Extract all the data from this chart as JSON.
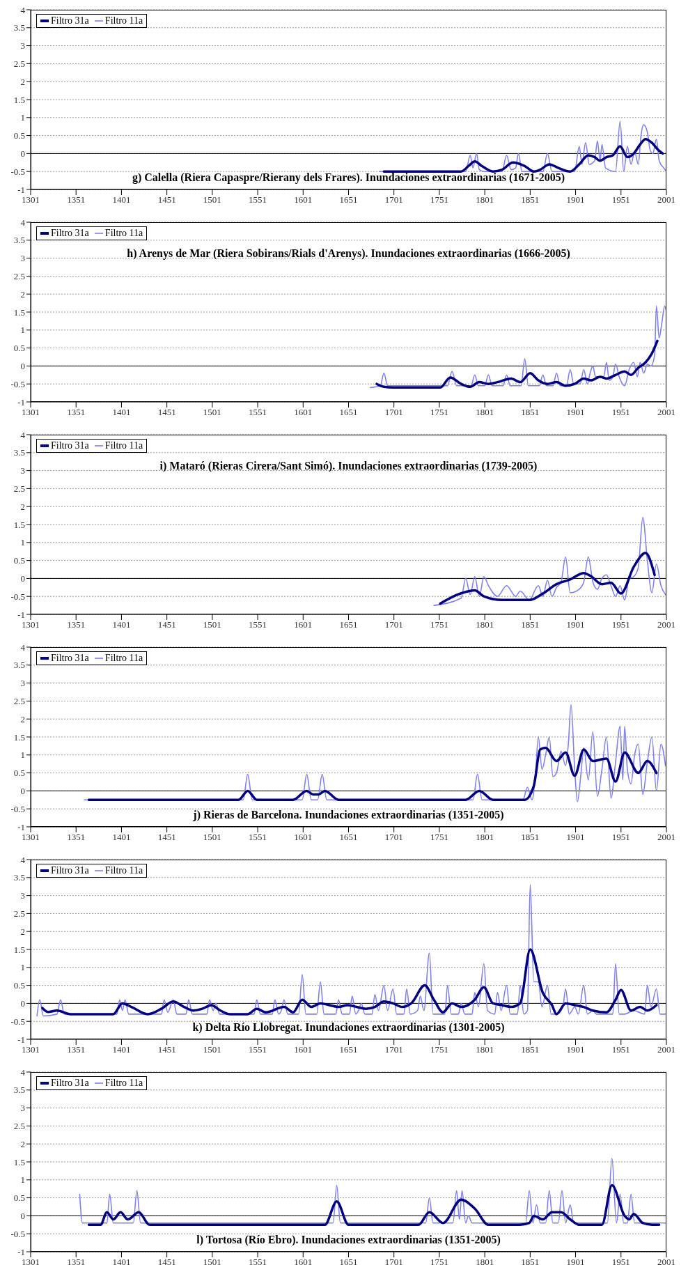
{
  "chart_data": [
    {
      "type": "line",
      "title": "g) Calella (Riera Capaspre/Rierany dels Frares). Inundaciones extraordinarias (1671-2005)",
      "xlim": [
        1301,
        2001
      ],
      "xticks": [
        1301,
        1351,
        1401,
        1451,
        1501,
        1551,
        1601,
        1651,
        1701,
        1751,
        1801,
        1851,
        1901,
        1951,
        2001
      ],
      "ylim": [
        -1,
        4
      ],
      "yticks": [
        -1,
        -0.5,
        0,
        0.5,
        1,
        1.5,
        2,
        2.5,
        3,
        3.5,
        4
      ],
      "grid": "y",
      "legend": "top left",
      "ref_lines": [
        {
          "axis": "y",
          "value": 0
        }
      ],
      "series": [
        {
          "name": "Filtro 31a",
          "color": "#000080",
          "x": [
            1690,
            1700,
            1720,
            1740,
            1760,
            1775,
            1783,
            1790,
            1798,
            1810,
            1820,
            1832,
            1845,
            1855,
            1862,
            1872,
            1882,
            1895,
            1905,
            1915,
            1922,
            1928,
            1935,
            1942,
            1950,
            1958,
            1965,
            1972,
            1978,
            1985,
            1992,
            1997
          ],
          "values": [
            -0.5,
            -0.5,
            -0.5,
            -0.5,
            -0.5,
            -0.5,
            -0.35,
            -0.22,
            -0.35,
            -0.5,
            -0.45,
            -0.25,
            -0.35,
            -0.5,
            -0.45,
            -0.3,
            -0.4,
            -0.5,
            -0.3,
            -0.05,
            -0.1,
            -0.2,
            -0.1,
            -0.05,
            0.2,
            -0.1,
            0.0,
            0.25,
            0.4,
            0.3,
            0.1,
            0.0
          ]
        },
        {
          "name": "Filtro 11a",
          "color": "#8080ee",
          "x": [
            1685,
            1780,
            1785,
            1788,
            1792,
            1795,
            1800,
            1820,
            1825,
            1830,
            1835,
            1838,
            1842,
            1865,
            1870,
            1875,
            1900,
            1905,
            1908,
            1912,
            1916,
            1922,
            1925,
            1928,
            1930,
            1934,
            1945,
            1950,
            1954,
            1958,
            1962,
            1966,
            1970,
            1973,
            1976,
            1980,
            1983,
            1986,
            1990,
            1993,
            1998,
            2001
          ],
          "values": [
            -0.5,
            -0.5,
            -0.05,
            -0.4,
            0.0,
            -0.45,
            -0.5,
            -0.5,
            -0.05,
            -0.45,
            -0.4,
            0.0,
            -0.5,
            -0.5,
            0.0,
            -0.5,
            -0.5,
            0.2,
            -0.3,
            0.3,
            -0.3,
            -0.2,
            0.35,
            -0.2,
            0.25,
            -0.4,
            -0.5,
            0.9,
            -0.5,
            0.2,
            -0.3,
            0.05,
            -0.3,
            0.5,
            0.8,
            0.6,
            0.1,
            0.0,
            0.4,
            -0.2,
            -0.4,
            -0.5
          ]
        }
      ]
    },
    {
      "type": "line",
      "title": "h) Arenys de Mar (Riera Sobirans/Rials d'Arenys). Inundaciones extraordinarias (1666-2005)",
      "xlim": [
        1301,
        2001
      ],
      "xticks": [
        1301,
        1351,
        1401,
        1451,
        1501,
        1551,
        1601,
        1651,
        1701,
        1751,
        1801,
        1851,
        1901,
        1951,
        2001
      ],
      "ylim": [
        -1,
        4
      ],
      "yticks": [
        -1,
        -0.5,
        0,
        0.5,
        1,
        1.5,
        2,
        2.5,
        3,
        3.5,
        4
      ],
      "grid": "y",
      "legend": "top left",
      "ref_lines": [
        {
          "axis": "y",
          "value": 0
        }
      ],
      "series": [
        {
          "name": "Filtro 31a",
          "color": "#000080",
          "x": [
            1682,
            1690,
            1700,
            1720,
            1752,
            1763,
            1775,
            1785,
            1795,
            1805,
            1815,
            1830,
            1840,
            1851,
            1860,
            1870,
            1880,
            1890,
            1900,
            1910,
            1918,
            1928,
            1935,
            1945,
            1955,
            1962,
            1970,
            1978,
            1985,
            1991
          ],
          "values": [
            -0.5,
            -0.58,
            -0.6,
            -0.6,
            -0.6,
            -0.32,
            -0.5,
            -0.58,
            -0.45,
            -0.5,
            -0.45,
            -0.35,
            -0.45,
            -0.2,
            -0.4,
            -0.5,
            -0.45,
            -0.55,
            -0.5,
            -0.35,
            -0.4,
            -0.3,
            -0.35,
            -0.25,
            -0.15,
            -0.25,
            -0.05,
            0.1,
            0.35,
            0.7
          ]
        },
        {
          "name": "Filtro 11a",
          "color": "#8080ee",
          "x": [
            1675,
            1686,
            1690,
            1694,
            1760,
            1765,
            1770,
            1786,
            1790,
            1794,
            1801,
            1805,
            1809,
            1821,
            1825,
            1829,
            1841,
            1845,
            1849,
            1861,
            1865,
            1869,
            1876,
            1880,
            1884,
            1891,
            1895,
            1899,
            1906,
            1910,
            1914,
            1917,
            1920,
            1923,
            1932,
            1935,
            1938,
            1942,
            1945,
            1949,
            1955,
            1960,
            1965,
            1969,
            1972,
            1976,
            1980,
            1984,
            1988,
            1990,
            1993,
            1996,
            1999,
            2001
          ],
          "values": [
            -0.6,
            -0.55,
            -0.2,
            -0.55,
            -0.55,
            -0.15,
            -0.55,
            -0.55,
            -0.25,
            -0.55,
            -0.55,
            -0.25,
            -0.55,
            -0.55,
            -0.25,
            -0.55,
            -0.55,
            0.2,
            -0.55,
            -0.55,
            -0.25,
            -0.55,
            -0.55,
            -0.2,
            -0.55,
            -0.55,
            -0.1,
            -0.5,
            -0.5,
            -0.1,
            -0.5,
            -0.2,
            0.0,
            -0.3,
            -0.3,
            0.1,
            -0.4,
            -0.3,
            0.05,
            -0.3,
            -0.55,
            -0.1,
            0.1,
            -0.3,
            0.1,
            -0.2,
            0.05,
            0.0,
            0.3,
            1.67,
            0.78,
            1.2,
            1.67,
            1.5
          ]
        }
      ]
    },
    {
      "type": "line",
      "title": "i) Mataró (Rieras Cirera/Sant Simó). Inundaciones extraordinarias (1739-2005)",
      "xlim": [
        1301,
        2001
      ],
      "xticks": [
        1301,
        1351,
        1401,
        1451,
        1501,
        1551,
        1601,
        1651,
        1701,
        1751,
        1801,
        1851,
        1901,
        1951,
        2001
      ],
      "ylim": [
        -1,
        4
      ],
      "yticks": [
        -1,
        -0.5,
        0,
        0.5,
        1,
        1.5,
        2,
        2.5,
        3,
        3.5,
        4
      ],
      "grid": "y",
      "legend": "top left",
      "ref_lines": [
        {
          "axis": "y",
          "value": 0
        }
      ],
      "series": [
        {
          "name": "Filtro 31a",
          "color": "#000080",
          "x": [
            1752,
            1770,
            1790,
            1800,
            1820,
            1835,
            1850,
            1865,
            1880,
            1895,
            1910,
            1918,
            1930,
            1940,
            1951,
            1965,
            1978,
            1988
          ],
          "values": [
            -0.7,
            -0.46,
            -0.33,
            -0.5,
            -0.6,
            -0.6,
            -0.6,
            -0.42,
            -0.16,
            -0.03,
            0.15,
            0.06,
            -0.16,
            -0.12,
            -0.42,
            0.32,
            0.71,
            0.1
          ]
        },
        {
          "name": "Filtro 11a",
          "color": "#8080ee",
          "x": [
            1745,
            1775,
            1780,
            1785,
            1790,
            1795,
            1800,
            1805,
            1815,
            1825,
            1835,
            1840,
            1850,
            1860,
            1865,
            1870,
            1875,
            1880,
            1885,
            1890,
            1895,
            1905,
            1910,
            1915,
            1920,
            1925,
            1930,
            1935,
            1940,
            1945,
            1950,
            1955,
            1960,
            1965,
            1970,
            1975,
            1980,
            1985,
            1990,
            1995,
            2000
          ],
          "values": [
            -0.75,
            -0.55,
            0.0,
            -0.45,
            0.05,
            -0.5,
            0.05,
            -0.2,
            -0.5,
            -0.2,
            -0.5,
            -0.35,
            -0.6,
            -0.2,
            -0.5,
            -0.05,
            -0.5,
            -0.25,
            -0.1,
            0.6,
            -0.4,
            -0.3,
            -0.1,
            0.6,
            -0.1,
            -0.3,
            0.0,
            0.1,
            -0.2,
            -0.5,
            -0.2,
            -0.6,
            0.0,
            0.05,
            0.3,
            1.7,
            0.5,
            -0.4,
            0.4,
            -0.2,
            -0.45
          ]
        }
      ]
    },
    {
      "type": "line",
      "title": "j) Rieras de Barcelona. Inundaciones extraordinarias (1351-2005)",
      "xlim": [
        1301,
        2001
      ],
      "xticks": [
        1301,
        1351,
        1401,
        1451,
        1501,
        1551,
        1601,
        1651,
        1701,
        1751,
        1801,
        1851,
        1901,
        1951,
        2001
      ],
      "ylim": [
        -1,
        4
      ],
      "yticks": [
        -1,
        -0.5,
        0,
        0.5,
        1,
        1.5,
        2,
        2.5,
        3,
        3.5,
        4
      ],
      "grid": "y",
      "legend": "top left",
      "ref_lines": [
        {
          "axis": "y",
          "value": 0
        }
      ],
      "series": [
        {
          "name": "Filtro 31a",
          "color": "#000080",
          "x": [
            1365,
            1400,
            1450,
            1500,
            1530,
            1540,
            1550,
            1590,
            1605,
            1612,
            1618,
            1625,
            1640,
            1700,
            1780,
            1795,
            1810,
            1845,
            1855,
            1862,
            1868,
            1880,
            1890,
            1900,
            1910,
            1920,
            1935,
            1945,
            1955,
            1970,
            1980,
            1990
          ],
          "values": [
            -0.25,
            -0.25,
            -0.25,
            -0.25,
            -0.25,
            0.0,
            -0.25,
            -0.25,
            0.0,
            -0.1,
            -0.1,
            0.0,
            -0.25,
            -0.25,
            -0.25,
            0.0,
            -0.25,
            -0.25,
            0.14,
            1.15,
            1.2,
            0.83,
            1.07,
            0.42,
            1.15,
            0.83,
            0.9,
            0.26,
            1.07,
            0.5,
            0.83,
            0.5
          ]
        },
        {
          "name": "Filtro 11a",
          "color": "#8080ee",
          "x": [
            1360,
            1535,
            1540,
            1545,
            1600,
            1605,
            1610,
            1617,
            1622,
            1627,
            1788,
            1793,
            1798,
            1843,
            1848,
            1853,
            1857,
            1860,
            1864,
            1868,
            1872,
            1876,
            1880,
            1885,
            1890,
            1893,
            1896,
            1900,
            1903,
            1907,
            1910,
            1915,
            1920,
            1925,
            1930,
            1935,
            1940,
            1945,
            1950,
            1953,
            1955,
            1958,
            1962,
            1966,
            1970,
            1975,
            1980,
            1985,
            1990,
            1995,
            2000
          ],
          "values": [
            -0.25,
            -0.25,
            0.46,
            -0.25,
            -0.25,
            0.46,
            -0.25,
            -0.25,
            0.46,
            -0.25,
            -0.25,
            0.46,
            -0.25,
            -0.25,
            0.1,
            -0.25,
            0.5,
            1.5,
            0.6,
            1.0,
            1.5,
            0.4,
            0.5,
            1.1,
            0.7,
            1.3,
            2.4,
            0.6,
            -0.3,
            0.5,
            1.2,
            0.3,
            1.65,
            -0.15,
            0.6,
            1.5,
            -0.2,
            0.8,
            1.8,
            0.3,
            1.8,
            0.6,
            0.2,
            1.0,
            1.3,
            -0.1,
            0.8,
            1.5,
            0.0,
            1.3,
            0.7
          ]
        }
      ]
    },
    {
      "type": "line",
      "title": "k) Delta Río Llobregat. Inundaciones extraordinarias (1301-2005)",
      "xlim": [
        1301,
        2001
      ],
      "xticks": [
        1301,
        1351,
        1401,
        1451,
        1501,
        1551,
        1601,
        1651,
        1701,
        1751,
        1801,
        1851,
        1901,
        1951,
        2001
      ],
      "ylim": [
        -1,
        4
      ],
      "yticks": [
        -1,
        -0.5,
        0,
        0.5,
        1,
        1.5,
        2,
        2.5,
        3,
        3.5,
        4
      ],
      "grid": "y",
      "legend": "top left",
      "ref_lines": [
        {
          "axis": "y",
          "value": 0
        }
      ],
      "series": [
        {
          "name": "Filtro 31a",
          "color": "#000080",
          "x": [
            1314,
            1320,
            1330,
            1345,
            1392,
            1402,
            1412,
            1430,
            1445,
            1458,
            1470,
            1480,
            1490,
            1500,
            1510,
            1520,
            1540,
            1550,
            1560,
            1580,
            1590,
            1600,
            1610,
            1620,
            1630,
            1640,
            1650,
            1660,
            1670,
            1680,
            1690,
            1700,
            1710,
            1720,
            1735,
            1745,
            1755,
            1765,
            1775,
            1790,
            1800,
            1810,
            1820,
            1830,
            1840,
            1851,
            1865,
            1875,
            1880,
            1890,
            1900,
            1910,
            1920,
            1935,
            1945,
            1951,
            1962,
            1972,
            1980,
            1990
          ],
          "values": [
            -0.13,
            -0.24,
            -0.2,
            -0.3,
            -0.3,
            0.0,
            -0.1,
            -0.3,
            -0.15,
            0.05,
            -0.1,
            -0.2,
            -0.15,
            -0.05,
            -0.2,
            -0.3,
            -0.3,
            -0.15,
            -0.25,
            -0.1,
            -0.25,
            0.1,
            -0.1,
            0.0,
            -0.05,
            -0.1,
            -0.05,
            -0.1,
            -0.15,
            -0.1,
            0.05,
            0.0,
            -0.1,
            0.0,
            0.5,
            0.1,
            -0.25,
            0.0,
            -0.1,
            0.1,
            0.45,
            0.0,
            -0.05,
            -0.1,
            0.0,
            1.5,
            0.29,
            -0.05,
            -0.3,
            0.0,
            -0.05,
            -0.1,
            -0.2,
            -0.25,
            0.1,
            0.37,
            -0.2,
            -0.1,
            -0.2,
            -0.05
          ]
        },
        {
          "name": "Filtro 11a",
          "color": "#8080ee",
          "x": [
            1308,
            1311,
            1315,
            1330,
            1334,
            1338,
            1396,
            1399,
            1402,
            1405,
            1409,
            1445,
            1448,
            1452,
            1458,
            1462,
            1472,
            1475,
            1479,
            1495,
            1498,
            1502,
            1505,
            1509,
            1547,
            1550,
            1554,
            1567,
            1570,
            1574,
            1577,
            1580,
            1584,
            1596,
            1600,
            1604,
            1616,
            1620,
            1624,
            1637,
            1640,
            1644,
            1652,
            1655,
            1659,
            1662,
            1665,
            1669,
            1677,
            1680,
            1684,
            1690,
            1694,
            1700,
            1704,
            1712,
            1715,
            1719,
            1727,
            1730,
            1734,
            1740,
            1744,
            1757,
            1760,
            1764,
            1772,
            1775,
            1779,
            1787,
            1790,
            1794,
            1800,
            1804,
            1812,
            1815,
            1819,
            1825,
            1829,
            1837,
            1840,
            1844,
            1848,
            1851,
            1855,
            1860,
            1864,
            1870,
            1874,
            1880,
            1887,
            1890,
            1894,
            1900,
            1904,
            1910,
            1914,
            1920,
            1924,
            1942,
            1945,
            1949,
            1955,
            1965,
            1977,
            1980,
            1984,
            1990,
            1994,
            2000
          ],
          "values": [
            -0.35,
            0.1,
            -0.35,
            -0.3,
            0.1,
            -0.3,
            -0.3,
            0.1,
            -0.2,
            0.1,
            -0.3,
            -0.3,
            0.1,
            -0.25,
            0.1,
            -0.3,
            -0.3,
            0.1,
            -0.3,
            -0.3,
            0.1,
            -0.2,
            0.0,
            -0.3,
            -0.3,
            0.1,
            -0.3,
            -0.3,
            0.1,
            -0.3,
            -0.2,
            0.1,
            -0.3,
            -0.3,
            0.8,
            -0.3,
            -0.3,
            0.6,
            -0.3,
            -0.3,
            0.1,
            -0.3,
            -0.3,
            0.2,
            -0.3,
            -0.2,
            0.0,
            -0.3,
            -0.3,
            0.25,
            -0.2,
            0.5,
            -0.2,
            0.4,
            -0.3,
            -0.3,
            0.4,
            -0.3,
            -0.2,
            0.2,
            -0.2,
            1.4,
            -0.3,
            -0.3,
            0.5,
            -0.3,
            -0.3,
            0.0,
            -0.3,
            -0.3,
            0.3,
            -0.1,
            1.1,
            -0.2,
            -0.3,
            0.3,
            -0.2,
            0.5,
            -0.3,
            -0.3,
            0.5,
            -0.3,
            -0.2,
            3.3,
            0.6,
            0.6,
            -0.1,
            0.5,
            -0.3,
            -0.3,
            -0.1,
            0.4,
            -0.3,
            -0.1,
            -0.3,
            0.5,
            -0.3,
            -0.2,
            -0.3,
            -0.3,
            1.1,
            -0.3,
            -0.3,
            -0.2,
            -0.3,
            0.5,
            -0.1,
            0.4,
            -0.3,
            -0.3
          ]
        }
      ]
    },
    {
      "type": "line",
      "title": "l) Tortosa (Río Ebro). Inundaciones extraordinarias (1351-2005)",
      "xlim": [
        1301,
        2001
      ],
      "xticks": [
        1301,
        1351,
        1401,
        1451,
        1501,
        1551,
        1601,
        1651,
        1701,
        1751,
        1801,
        1851,
        1901,
        1951,
        2001
      ],
      "ylim": [
        -1,
        4
      ],
      "yticks": [
        -1,
        -0.5,
        0,
        0.5,
        1,
        1.5,
        2,
        2.5,
        3,
        3.5,
        4
      ],
      "grid": "y",
      "legend": "top left",
      "ref_lines": [
        {
          "axis": "y",
          "value": 0
        }
      ],
      "series": [
        {
          "name": "Filtro 31a",
          "color": "#000080",
          "x": [
            1365,
            1378,
            1385,
            1392,
            1400,
            1408,
            1420,
            1432,
            1450,
            1600,
            1625,
            1638,
            1651,
            1700,
            1728,
            1740,
            1755,
            1775,
            1790,
            1805,
            1840,
            1850,
            1855,
            1865,
            1875,
            1885,
            1895,
            1905,
            1930,
            1941,
            1955,
            1960,
            1965,
            1975,
            1985,
            1993
          ],
          "values": [
            -0.25,
            -0.25,
            0.1,
            -0.1,
            0.1,
            -0.1,
            0.1,
            -0.25,
            -0.25,
            -0.25,
            -0.25,
            0.4,
            -0.25,
            -0.25,
            -0.25,
            0.1,
            -0.2,
            0.45,
            0.2,
            -0.25,
            -0.25,
            -0.2,
            0.0,
            -0.1,
            0.1,
            0.1,
            -0.1,
            -0.25,
            -0.25,
            0.85,
            0.0,
            -0.1,
            0.05,
            -0.2,
            -0.25,
            -0.25
          ]
        },
        {
          "name": "Filtro 11a",
          "color": "#8080ee",
          "x": [
            1355,
            1358,
            1385,
            1388,
            1392,
            1414,
            1418,
            1422,
            1634,
            1638,
            1642,
            1736,
            1740,
            1744,
            1766,
            1770,
            1773,
            1776,
            1780,
            1783,
            1787,
            1846,
            1850,
            1854,
            1858,
            1862,
            1868,
            1872,
            1876,
            1882,
            1886,
            1890,
            1895,
            1899,
            1936,
            1941,
            1946,
            1950,
            1954,
            1958,
            1962,
            1966,
            2001
          ],
          "values": [
            0.6,
            -0.2,
            -0.2,
            0.6,
            -0.2,
            -0.2,
            0.7,
            -0.2,
            -0.2,
            0.85,
            -0.2,
            -0.2,
            0.5,
            -0.2,
            -0.2,
            0.7,
            -0.1,
            0.7,
            -0.2,
            0.0,
            -0.2,
            -0.2,
            0.7,
            -0.2,
            0.3,
            -0.2,
            -0.2,
            0.7,
            -0.2,
            -0.2,
            0.7,
            -0.2,
            0.3,
            -0.2,
            -0.2,
            1.6,
            -0.2,
            0.6,
            -0.2,
            -0.2,
            0.6,
            -0.2,
            -0.2
          ]
        }
      ]
    }
  ]
}
